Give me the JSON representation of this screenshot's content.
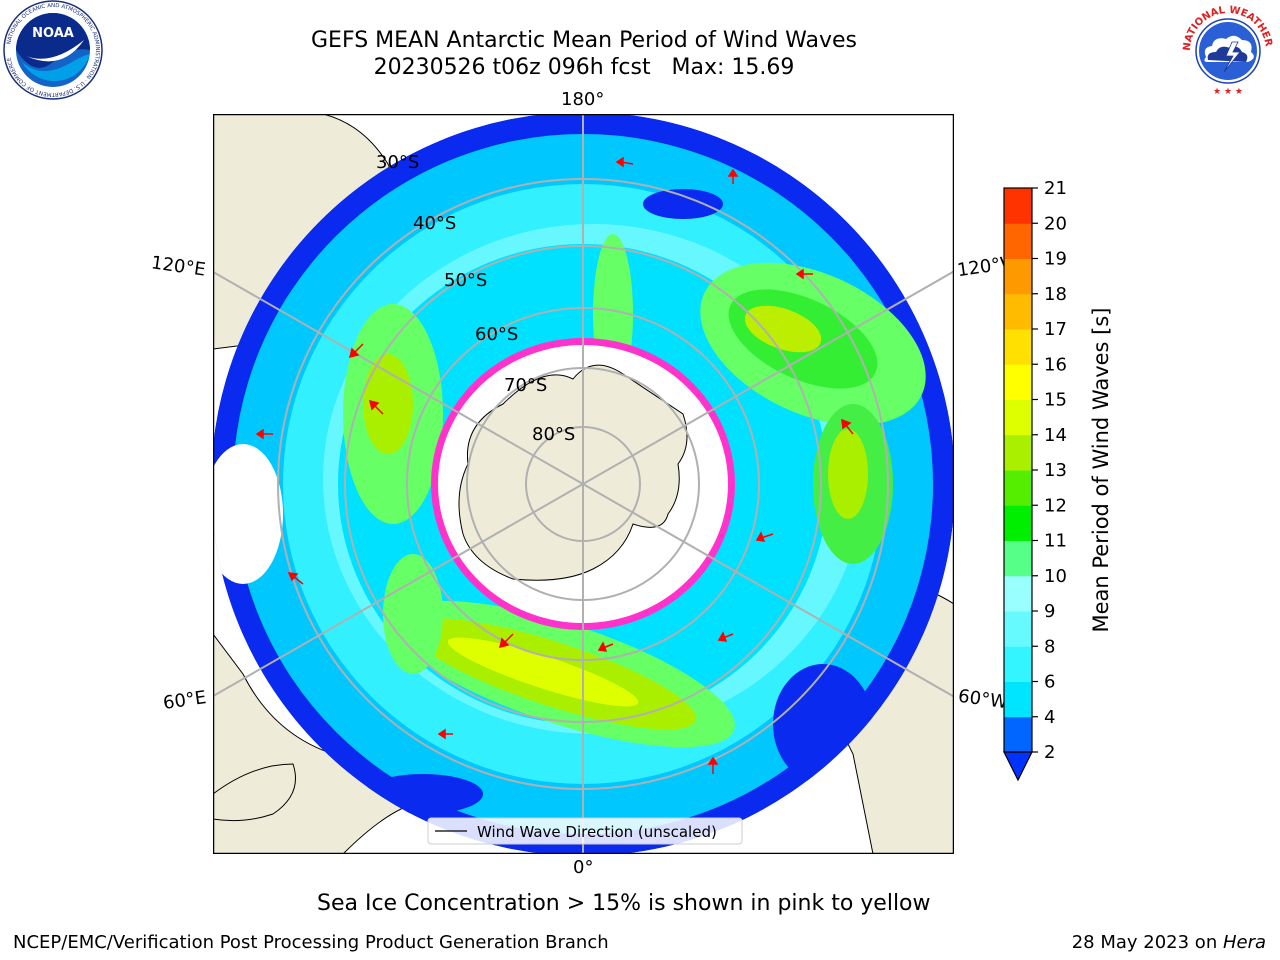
{
  "header": {
    "title_line1": "GEFS MEAN Antarctic Mean Period of Wind Waves",
    "title_line2": "20230526 t06z 096h fcst   Max: 15.69"
  },
  "logos": {
    "left": {
      "icon": "noaa-logo-icon",
      "text": "NOAA",
      "ring_text": "NATIONAL OCEANIC AND ATMOSPHERIC ADMINISTRATION · U.S. DEPARTMENT OF COMMERCE"
    },
    "right": {
      "icon": "nws-logo-icon",
      "ring_text": "NATIONAL WEATHER SERVICE"
    }
  },
  "map": {
    "projection": "south-polar-stereographic",
    "lon_labels": {
      "top": "180°",
      "bottom": "0°",
      "upper_left": "120°E",
      "upper_right": "120°W",
      "lower_left": "60°E",
      "lower_right": "60°W"
    },
    "lat_labels": [
      "30°S",
      "40°S",
      "50°S",
      "60°S",
      "70°S",
      "80°S"
    ],
    "legend_label": "Wind Wave Direction (unscaled)",
    "colors": {
      "land": "#eeecd9",
      "ice_edge": "#ff33cc",
      "arrow": "#ff0000",
      "grid": "#b0b0b0"
    }
  },
  "colorbar": {
    "label": "Mean Period of Wind Waves [s]",
    "ticks": [
      "2",
      "4",
      "6",
      "8",
      "9",
      "10",
      "11",
      "12",
      "13",
      "14",
      "15",
      "16",
      "17",
      "18",
      "19",
      "20",
      "21"
    ],
    "colors": [
      "#0066ff",
      "#00e5ff",
      "#33f5ff",
      "#66faff",
      "#99ffff",
      "#55ff88",
      "#00ee00",
      "#55ee00",
      "#aaee00",
      "#ddff00",
      "#ffff00",
      "#ffe000",
      "#ffbb00",
      "#ff9900",
      "#ff6600",
      "#ff3300",
      "#ff0000"
    ],
    "extend_color": "#0033ff"
  },
  "caption": "Sea Ice Concentration > 15% is shown in pink to yellow",
  "footer": {
    "left": "NCEP/EMC/Verification Post Processing Product Generation Branch",
    "right_prefix": "28 May 2023 on ",
    "right_italic": "Hera"
  }
}
